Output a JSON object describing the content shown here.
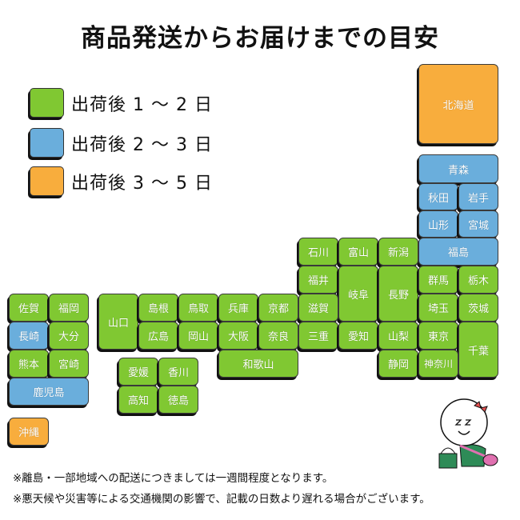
{
  "title": "商品発送からお届けまでの目安",
  "colors": {
    "green": "#80c832",
    "blue": "#6aaedc",
    "orange": "#f8ad3d"
  },
  "legend": [
    {
      "label": "出荷後 1 〜 2 日",
      "color": "#80c832"
    },
    {
      "label": "出荷後 2 〜 3 日",
      "color": "#6aaedc"
    },
    {
      "label": "出荷後 3 〜 5 日",
      "color": "#f8ad3d"
    }
  ],
  "prefectures": [
    "北海道",
    "青森",
    "秋田",
    "岩手",
    "山形",
    "宮城",
    "福島",
    "石川",
    "富山",
    "新潟",
    "福井",
    "岐阜",
    "長野",
    "群馬",
    "栃木",
    "滋賀",
    "埼玉",
    "茨城",
    "三重",
    "愛知",
    "山梨",
    "東京",
    "千葉",
    "静岡",
    "神奈川",
    "山口",
    "島根",
    "鳥取",
    "兵庫",
    "京都",
    "広島",
    "岡山",
    "大阪",
    "奈良",
    "和歌山",
    "愛媛",
    "香川",
    "高知",
    "徳島",
    "佐賀",
    "福岡",
    "長崎",
    "大分",
    "熊本",
    "宮崎",
    "鹿児島",
    "沖縄"
  ],
  "notes": [
    "※離島・一部地域への配送につきましては一週間程度となります。",
    "※悪天候や災害等による交通機関の影響で、記載の日数より遅れる場合がございます。"
  ]
}
